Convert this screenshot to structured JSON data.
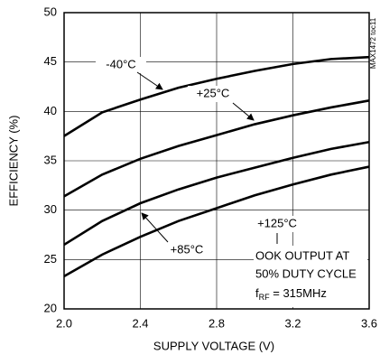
{
  "chart_data": {
    "type": "line",
    "x_label": "SUPPLY VOLTAGE (V)",
    "y_label": "EFFICIENCY (%)",
    "side_note": "MAX1472 toc11",
    "x": [
      2.0,
      2.2,
      2.4,
      2.6,
      2.8,
      3.0,
      3.2,
      3.4,
      3.6
    ],
    "series": [
      {
        "name": "-40°C",
        "color": "#000000",
        "values": [
          37.5,
          39.9,
          41.2,
          42.4,
          43.3,
          44.1,
          44.8,
          45.3,
          45.5
        ]
      },
      {
        "name": "+25°C",
        "color": "#000000",
        "values": [
          31.4,
          33.6,
          35.2,
          36.5,
          37.6,
          38.7,
          39.6,
          40.4,
          41.1
        ]
      },
      {
        "name": "+85°C",
        "color": "#000000",
        "values": [
          26.5,
          28.9,
          30.7,
          32.1,
          33.3,
          34.3,
          35.3,
          36.2,
          36.9
        ]
      },
      {
        "name": "+125°C",
        "color": "#000000",
        "values": [
          23.3,
          25.5,
          27.3,
          28.9,
          30.2,
          31.5,
          32.6,
          33.6,
          34.4
        ]
      }
    ],
    "note": [
      "OOK OUTPUT AT",
      "50% DUTY CYCLE"
    ],
    "note_freq": [
      "f",
      "RF",
      " = 315MHz"
    ],
    "xlim": [
      2.0,
      3.6
    ],
    "xticks": [
      {
        "value": 2.0,
        "label": "2.0"
      },
      2.4,
      2.8,
      3.2,
      3.6
    ],
    "ylim": [
      20,
      50
    ],
    "yticks": [
      20,
      25,
      30,
      35,
      40,
      45,
      50
    ],
    "grid": true
  }
}
